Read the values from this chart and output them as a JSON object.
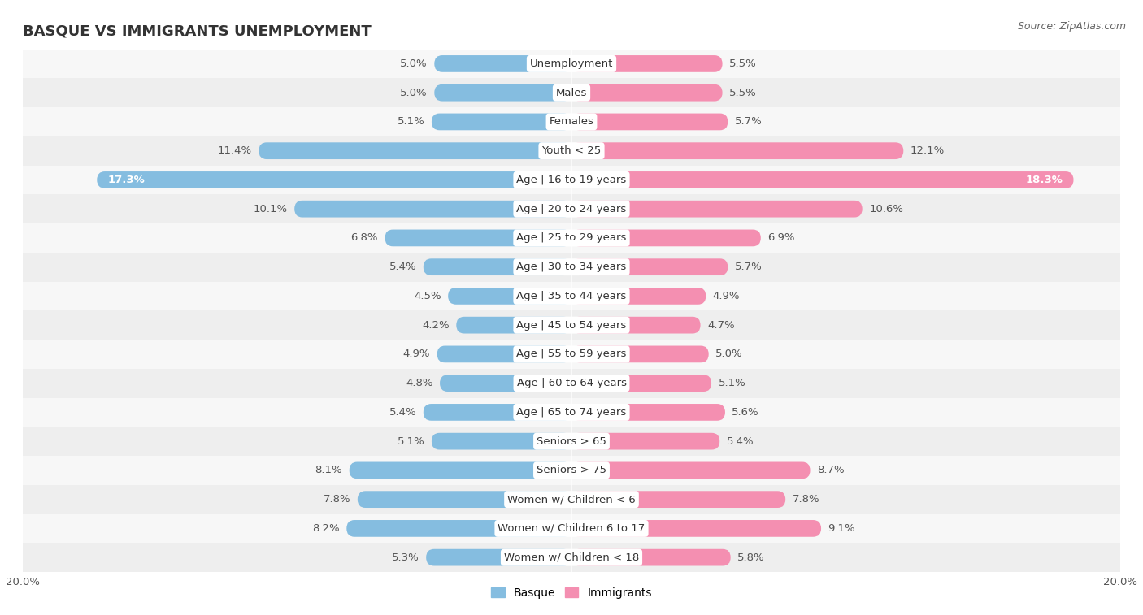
{
  "title": "BASQUE VS IMMIGRANTS UNEMPLOYMENT",
  "source": "Source: ZipAtlas.com",
  "categories": [
    "Unemployment",
    "Males",
    "Females",
    "Youth < 25",
    "Age | 16 to 19 years",
    "Age | 20 to 24 years",
    "Age | 25 to 29 years",
    "Age | 30 to 34 years",
    "Age | 35 to 44 years",
    "Age | 45 to 54 years",
    "Age | 55 to 59 years",
    "Age | 60 to 64 years",
    "Age | 65 to 74 years",
    "Seniors > 65",
    "Seniors > 75",
    "Women w/ Children < 6",
    "Women w/ Children 6 to 17",
    "Women w/ Children < 18"
  ],
  "basque_values": [
    5.0,
    5.0,
    5.1,
    11.4,
    17.3,
    10.1,
    6.8,
    5.4,
    4.5,
    4.2,
    4.9,
    4.8,
    5.4,
    5.1,
    8.1,
    7.8,
    8.2,
    5.3
  ],
  "immigrant_values": [
    5.5,
    5.5,
    5.7,
    12.1,
    18.3,
    10.6,
    6.9,
    5.7,
    4.9,
    4.7,
    5.0,
    5.1,
    5.6,
    5.4,
    8.7,
    7.8,
    9.1,
    5.8
  ],
  "basque_color": "#85bde0",
  "immigrant_color": "#f48fb1",
  "row_bg_colors": [
    "#f7f7f7",
    "#eeeeee"
  ],
  "x_max": 20.0,
  "bar_height": 0.58,
  "label_fontsize": 9.5,
  "value_fontsize": 9.5,
  "title_fontsize": 13,
  "source_fontsize": 9,
  "title_color": "#333333",
  "source_color": "#666666",
  "value_color": "#555555",
  "label_color": "#333333",
  "white_value_threshold": 15.0,
  "inner_value_threshold": 12.0
}
